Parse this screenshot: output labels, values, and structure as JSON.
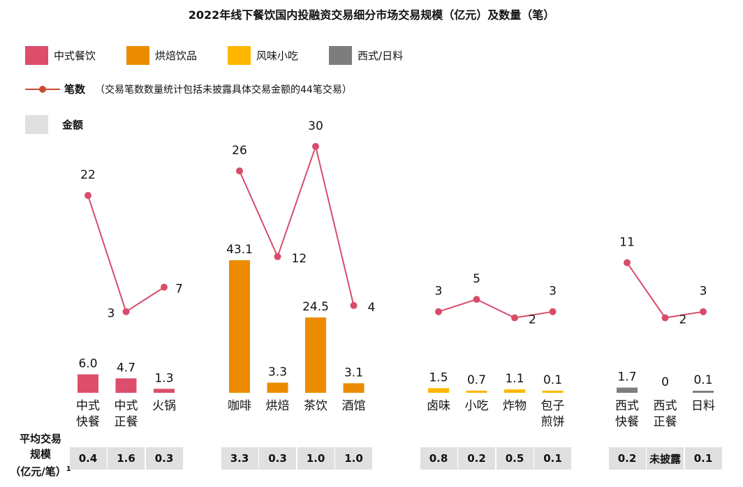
{
  "chart_data": {
    "type": "bar",
    "title": "2022年线下餐饮国内投融资交易细分市场交易规模（亿元）及数量（笔）",
    "legend": {
      "categories": [
        {
          "name": "中式餐饮",
          "color": "#DC4E6C"
        },
        {
          "name": "烘焙饮品",
          "color": "#EB8C00"
        },
        {
          "name": "风味小吃",
          "color": "#FFB600"
        },
        {
          "name": "西式/日料",
          "color": "#7D7D7D"
        }
      ],
      "count_series_name": "笔数",
      "count_series_note": "（交易笔数数量统计包括未披露具体交易金额的44笔交易）",
      "amount_series_name": "金额",
      "line_color": "#C94A30",
      "amount_box_color": "#E0E0E0"
    },
    "groups": [
      {
        "name": "中式餐饮",
        "color": "#DC4E6C",
        "line_color": "#D84C6A",
        "items": [
          {
            "label": [
              "中式",
              "快餐"
            ],
            "amount": 6.0,
            "amount_label": "6.0",
            "count": 22,
            "avg": "0.4"
          },
          {
            "label": [
              "中式",
              "正餐"
            ],
            "amount": 4.7,
            "amount_label": "4.7",
            "count": 3,
            "avg": "1.6"
          },
          {
            "label": [
              "火锅"
            ],
            "amount": 1.3,
            "amount_label": "1.3",
            "count": 7,
            "avg": "0.3"
          }
        ]
      },
      {
        "name": "烘焙饮品",
        "color": "#EB8C00",
        "line_color": "#D84C6A",
        "items": [
          {
            "label": [
              "咖啡"
            ],
            "amount": 43.1,
            "amount_label": "43.1",
            "count": 26,
            "avg": "3.3"
          },
          {
            "label": [
              "烘焙"
            ],
            "amount": 3.3,
            "amount_label": "3.3",
            "count": 12,
            "avg": "0.3"
          },
          {
            "label": [
              "茶饮"
            ],
            "amount": 24.5,
            "amount_label": "24.5",
            "count": 30,
            "avg": "1.0"
          },
          {
            "label": [
              "酒馆"
            ],
            "amount": 3.1,
            "amount_label": "3.1",
            "count": 4,
            "avg": "1.0"
          }
        ]
      },
      {
        "name": "风味小吃",
        "color": "#FFB600",
        "line_color": "#D84C6A",
        "items": [
          {
            "label": [
              "卤味"
            ],
            "amount": 1.5,
            "amount_label": "1.5",
            "count": 3,
            "avg": "0.8"
          },
          {
            "label": [
              "小吃"
            ],
            "amount": 0.7,
            "amount_label": "0.7",
            "count": 5,
            "avg": "0.2"
          },
          {
            "label": [
              "炸物"
            ],
            "amount": 1.1,
            "amount_label": "1.1",
            "count": 2,
            "avg": "0.5"
          },
          {
            "label": [
              "包子",
              "煎饼"
            ],
            "amount": 0.1,
            "amount_label": "0.1",
            "count": 3,
            "avg": "0.1"
          }
        ]
      },
      {
        "name": "西式/日料",
        "color": "#7D7D7D",
        "line_color": "#D84C6A",
        "items": [
          {
            "label": [
              "西式",
              "快餐"
            ],
            "amount": 1.7,
            "amount_label": "1.7",
            "count": 11,
            "avg": "0.2"
          },
          {
            "label": [
              "西式",
              "正餐"
            ],
            "amount": 0,
            "amount_label": "0",
            "count": 2,
            "avg": "未披露"
          },
          {
            "label": [
              "日料"
            ],
            "amount": 0.1,
            "amount_label": "0.1",
            "count": 3,
            "avg": "0.1"
          }
        ]
      }
    ],
    "avg_row_label": [
      "平均交易",
      "规模",
      "（亿元/笔）"
    ],
    "avg_row_footnote": "1"
  }
}
